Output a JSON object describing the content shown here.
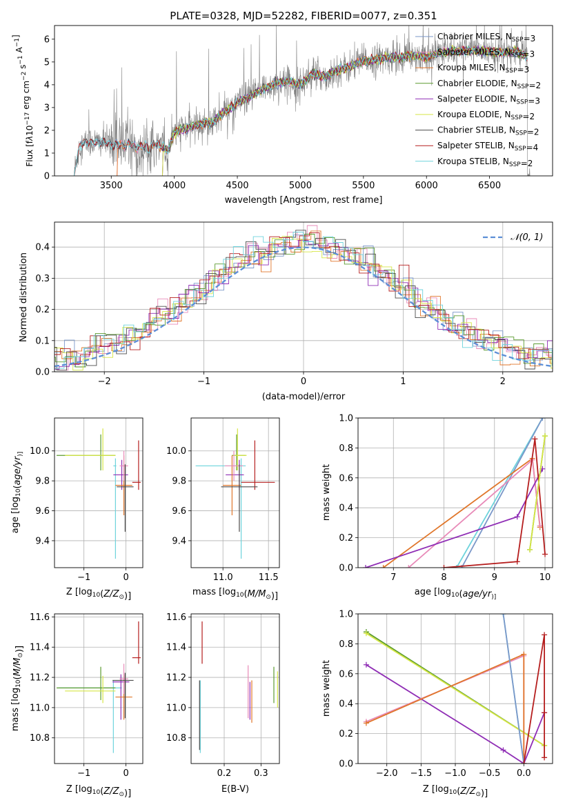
{
  "suptitle": "PLATE=0328, MJD=52282, FIBERID=0077, z=0.351",
  "colors": {
    "chabrier_miles": "#7a97c9",
    "salpeter_miles": "#e88ab8",
    "kroupa_miles": "#e0762a",
    "chabrier_elodie": "#5a9a2e",
    "salpeter_elodie": "#8f2db5",
    "kroupa_elodie": "#d6e645",
    "chabrier_stelib": "#4a4a4a",
    "salpeter_stelib": "#b51d1d",
    "kroupa_stelib": "#6dd3dc",
    "data": "#7f7f7f",
    "normal": "#5b8ed6"
  },
  "chart_data": [
    {
      "id": "spectrum",
      "type": "line",
      "xlabel": "wavelength [Angstrom, rest frame]",
      "ylabel_parts": [
        "Flux [f",
        "λ",
        "10",
        "−17",
        " erg cm",
        "−2",
        " s",
        "−1",
        " A",
        "−1",
        "]"
      ],
      "xlim": [
        3050,
        7000
      ],
      "ylim": [
        0,
        6.6
      ],
      "xticks": [
        3500,
        4000,
        4500,
        5000,
        5500,
        6000,
        6500
      ],
      "yticks": [
        0,
        1,
        2,
        3,
        4,
        5,
        6
      ],
      "model_continuum": {
        "x": [
          3200,
          3250,
          3300,
          3350,
          3400,
          3450,
          3500,
          3550,
          3600,
          3650,
          3700,
          3750,
          3800,
          3850,
          3900,
          3950,
          4000,
          4050,
          4100,
          4150,
          4200,
          4250,
          4300,
          4350,
          4400,
          4450,
          4500,
          4600,
          4700,
          4800,
          4900,
          5000,
          5100,
          5200,
          5300,
          5400,
          5500,
          5600,
          5700,
          5800,
          5900,
          6000,
          6100,
          6200,
          6300,
          6400,
          6500,
          6600,
          6700,
          6800
        ],
        "y": [
          0.0,
          1.35,
          1.45,
          1.5,
          1.45,
          1.5,
          1.35,
          1.4,
          1.3,
          1.45,
          1.2,
          1.35,
          1.2,
          1.4,
          1.3,
          1.1,
          1.9,
          2.05,
          2.1,
          2.2,
          2.25,
          2.35,
          2.3,
          2.6,
          2.8,
          3.0,
          3.2,
          3.5,
          3.8,
          4.05,
          4.15,
          4.0,
          4.5,
          4.35,
          4.65,
          4.8,
          5.05,
          5.1,
          5.2,
          5.2,
          5.3,
          5.2,
          5.4,
          5.45,
          5.5,
          5.5,
          5.45,
          5.4,
          5.5,
          5.2
        ]
      },
      "data_trace": {
        "wavelength_range": [
          3210,
          6820
        ],
        "note_visible": "noisy observed spectrum"
      },
      "legend": [
        {
          "label_main": "Chabrier MILES, N",
          "sub": "SSP",
          "label_tail": "=3",
          "color_key": "chabrier_miles"
        },
        {
          "label_main": "Salpeter MILES, N",
          "sub": "SSP",
          "label_tail": "=3",
          "color_key": "salpeter_miles"
        },
        {
          "label_main": "Kroupa MILES, N",
          "sub": "SSP",
          "label_tail": "=3",
          "color_key": "kroupa_miles"
        },
        {
          "label_main": "Chabrier ELODIE, N",
          "sub": "SSP",
          "label_tail": "=2",
          "color_key": "chabrier_elodie"
        },
        {
          "label_main": "Salpeter ELODIE, N",
          "sub": "SSP",
          "label_tail": "=3",
          "color_key": "salpeter_elodie"
        },
        {
          "label_main": "Kroupa ELODIE, N",
          "sub": "SSP",
          "label_tail": "=2",
          "color_key": "kroupa_elodie"
        },
        {
          "label_main": "Chabrier STELIB, N",
          "sub": "SSP",
          "label_tail": "=2",
          "color_key": "chabrier_stelib"
        },
        {
          "label_main": "Salpeter STELIB, N",
          "sub": "SSP",
          "label_tail": "=4",
          "color_key": "salpeter_stelib"
        },
        {
          "label_main": "Kroupa STELIB, N",
          "sub": "SSP",
          "label_tail": "=2",
          "color_key": "kroupa_stelib"
        }
      ]
    },
    {
      "id": "residuals",
      "type": "line",
      "xlabel": "(data-model)/error",
      "ylabel": "Normed distribution",
      "xlim": [
        -2.5,
        2.5
      ],
      "ylim": [
        0,
        0.48
      ],
      "xticks": [
        -2,
        -1,
        0,
        1,
        2
      ],
      "yticks": [
        0.0,
        0.1,
        0.2,
        0.3,
        0.4
      ],
      "legend": {
        "label": "𝒩(0, 1)",
        "placement": "top-right"
      },
      "grid": true
    },
    {
      "id": "age_vs_Z",
      "type": "scatter",
      "xlabel_parts": [
        "Z [log",
        "10",
        "(",
        "Z/Z",
        "⊙",
        ")]"
      ],
      "ylabel_parts": [
        "age  [log",
        "10",
        "(",
        "age/yr",
        ")]"
      ],
      "xlim": [
        -1.7,
        0.4
      ],
      "ylim": [
        9.22,
        10.22
      ],
      "xticks": [
        -1,
        0
      ],
      "yticks": [
        9.4,
        9.6,
        9.8,
        10.0
      ],
      "points": [
        {
          "x": -0.25,
          "y": 9.9,
          "xerr": [
            0.05,
            0.02
          ],
          "yerr": [
            0.62,
            0.05
          ],
          "c": "kroupa_stelib"
        },
        {
          "x": -0.6,
          "y": 9.97,
          "xerr": [
            1.05,
            0.35
          ],
          "yerr": [
            0.1,
            0.14
          ],
          "c": "chabrier_elodie"
        },
        {
          "x": -0.55,
          "y": 9.97,
          "xerr": [
            0.9,
            0.3
          ],
          "yerr": [
            0.1,
            0.18
          ],
          "c": "kroupa_elodie"
        },
        {
          "x": -0.1,
          "y": 9.84,
          "xerr": [
            0.2,
            0.15
          ],
          "yerr": [
            0.1,
            0.1
          ],
          "c": "salpeter_elodie"
        },
        {
          "x": -0.05,
          "y": 9.77,
          "xerr": [
            0.2,
            0.2
          ],
          "yerr": [
            0.2,
            0.2
          ],
          "c": "kroupa_miles"
        },
        {
          "x": -0.05,
          "y": 9.9,
          "xerr": [
            0.1,
            0.1
          ],
          "yerr": [
            0.1,
            0.1
          ],
          "c": "salpeter_miles"
        },
        {
          "x": 0.3,
          "y": 9.79,
          "xerr": [
            0.15,
            0.05
          ],
          "yerr": [
            0.05,
            0.28
          ],
          "c": "salpeter_stelib"
        },
        {
          "x": -0.02,
          "y": 9.76,
          "xerr": [
            0.2,
            0.2
          ],
          "yerr": [
            0.3,
            0.15
          ],
          "c": "chabrier_stelib"
        }
      ]
    },
    {
      "id": "age_vs_mass",
      "type": "scatter",
      "xlabel_parts": [
        "mass [log",
        "10",
        "(",
        "M/M",
        "⊙",
        ")]"
      ],
      "ylabel": "",
      "xlim": [
        10.65,
        11.62
      ],
      "ylim": [
        9.22,
        10.22
      ],
      "xticks": [
        11.0,
        11.5
      ],
      "yticks": [
        9.4,
        9.6,
        9.8,
        10.0
      ],
      "points": [
        {
          "x": 11.2,
          "y": 9.9,
          "xerr": [
            0.5,
            0.05
          ],
          "yerr": [
            0.62,
            0.05
          ],
          "c": "kroupa_stelib"
        },
        {
          "x": 11.15,
          "y": 9.97,
          "xerr": [
            0.05,
            0.1
          ],
          "yerr": [
            0.1,
            0.14
          ],
          "c": "chabrier_elodie"
        },
        {
          "x": 11.16,
          "y": 9.97,
          "xerr": [
            0.05,
            0.1
          ],
          "yerr": [
            0.1,
            0.18
          ],
          "c": "kroupa_elodie"
        },
        {
          "x": 11.18,
          "y": 9.84,
          "xerr": [
            0.15,
            0.05
          ],
          "yerr": [
            0.1,
            0.1
          ],
          "c": "salpeter_elodie"
        },
        {
          "x": 11.1,
          "y": 9.77,
          "xerr": [
            0.1,
            0.1
          ],
          "yerr": [
            0.2,
            0.2
          ],
          "c": "kroupa_miles"
        },
        {
          "x": 11.12,
          "y": 9.9,
          "xerr": [
            0.1,
            0.1
          ],
          "yerr": [
            0.1,
            0.1
          ],
          "c": "salpeter_miles"
        },
        {
          "x": 11.35,
          "y": 9.79,
          "xerr": [
            0.15,
            0.22
          ],
          "yerr": [
            0.05,
            0.28
          ],
          "c": "salpeter_stelib"
        },
        {
          "x": 11.18,
          "y": 9.76,
          "xerr": [
            0.2,
            0.2
          ],
          "yerr": [
            0.3,
            0.15
          ],
          "c": "chabrier_stelib"
        }
      ]
    },
    {
      "id": "mass_vs_Z",
      "type": "scatter",
      "xlabel_parts": [
        "Z [log",
        "10",
        "(",
        "Z/Z",
        "⊙",
        ")]"
      ],
      "ylabel_parts": [
        "mass [log",
        "10",
        "(",
        "M/M",
        "⊙",
        ")]"
      ],
      "xlim": [
        -1.7,
        0.4
      ],
      "ylim": [
        10.63,
        11.62
      ],
      "xticks": [
        -1,
        0
      ],
      "yticks": [
        10.8,
        11.0,
        11.2,
        11.4,
        11.6
      ],
      "points": [
        {
          "x": -0.3,
          "y": 11.13,
          "xerr": [
            1.3,
            0.2
          ],
          "yerr": [
            0.43,
            0.05
          ],
          "c": "kroupa_stelib"
        },
        {
          "x": -0.6,
          "y": 11.13,
          "xerr": [
            1.05,
            0.35
          ],
          "yerr": [
            0.08,
            0.14
          ],
          "c": "chabrier_elodie"
        },
        {
          "x": -0.55,
          "y": 11.11,
          "xerr": [
            0.9,
            0.3
          ],
          "yerr": [
            0.08,
            0.1
          ],
          "c": "kroupa_elodie"
        },
        {
          "x": -0.12,
          "y": 11.17,
          "xerr": [
            0.2,
            0.2
          ],
          "yerr": [
            0.25,
            0.05
          ],
          "c": "salpeter_elodie"
        },
        {
          "x": -0.05,
          "y": 11.07,
          "xerr": [
            0.2,
            0.2
          ],
          "yerr": [
            0.15,
            0.15
          ],
          "c": "kroupa_miles"
        },
        {
          "x": -0.05,
          "y": 11.19,
          "xerr": [
            0.1,
            0.1
          ],
          "yerr": [
            0.1,
            0.1
          ],
          "c": "salpeter_miles"
        },
        {
          "x": 0.3,
          "y": 11.33,
          "xerr": [
            0.15,
            0.05
          ],
          "yerr": [
            0.04,
            0.24
          ],
          "c": "salpeter_stelib"
        },
        {
          "x": -0.02,
          "y": 11.18,
          "xerr": [
            0.3,
            0.2
          ],
          "yerr": [
            0.25,
            0.05
          ],
          "c": "chabrier_stelib"
        }
      ]
    },
    {
      "id": "mass_vs_EBV",
      "type": "scatter",
      "xlabel": "E(B-V)",
      "ylabel": "",
      "xlim": [
        0.11,
        0.35
      ],
      "ylim": [
        10.63,
        11.62
      ],
      "xticks": [
        0.2,
        0.3
      ],
      "yticks": [
        10.8,
        11.0,
        11.2,
        11.4,
        11.6
      ],
      "points": [
        {
          "x": 0.135,
          "y": 11.0,
          "xerr": [
            0,
            0
          ],
          "yerr": [
            0.3,
            0.18
          ],
          "c": "kroupa_stelib"
        },
        {
          "x": 0.133,
          "y": 11.0,
          "xerr": [
            0,
            0
          ],
          "yerr": [
            0.28,
            0.18
          ],
          "c": "chabrier_stelib"
        },
        {
          "x": 0.14,
          "y": 11.43,
          "xerr": [
            0,
            0
          ],
          "yerr": [
            0.14,
            0.14
          ],
          "c": "salpeter_stelib"
        },
        {
          "x": 0.265,
          "y": 11.1,
          "xerr": [
            0,
            0
          ],
          "yerr": [
            0.17,
            0.18
          ],
          "c": "salpeter_miles"
        },
        {
          "x": 0.27,
          "y": 11.07,
          "xerr": [
            0,
            0
          ],
          "yerr": [
            0.15,
            0.1
          ],
          "c": "salpeter_elodie"
        },
        {
          "x": 0.275,
          "y": 11.05,
          "xerr": [
            0,
            0
          ],
          "yerr": [
            0.15,
            0.13
          ],
          "c": "kroupa_miles"
        },
        {
          "x": 0.335,
          "y": 11.13,
          "xerr": [
            0,
            0
          ],
          "yerr": [
            0.1,
            0.14
          ],
          "c": "chabrier_elodie"
        },
        {
          "x": 0.345,
          "y": 11.12,
          "xerr": [
            0,
            0
          ],
          "yerr": [
            0.12,
            0.12
          ],
          "c": "kroupa_elodie"
        }
      ]
    },
    {
      "id": "weight_vs_age",
      "type": "line",
      "xlabel_parts": [
        "age  [log",
        "10",
        "(",
        "age/yr",
        ")]"
      ],
      "ylabel": "mass weight",
      "xlim": [
        6.3,
        10.15
      ],
      "ylim": [
        0,
        1
      ],
      "xticks": [
        7,
        8,
        9,
        10
      ],
      "yticks": [
        0.0,
        0.2,
        0.4,
        0.6,
        0.8,
        1.0
      ],
      "series": [
        {
          "c": "kroupa_stelib",
          "x": [
            8.25,
            9.95
          ],
          "y": [
            0.0,
            1.0
          ]
        },
        {
          "c": "chabrier_miles",
          "x": [
            8.35,
            9.95
          ],
          "y": [
            0.0,
            1.0
          ]
        },
        {
          "c": "kroupa_miles",
          "x": [
            6.8,
            9.75,
            9.9
          ],
          "y": [
            0.0,
            0.73,
            0.27
          ]
        },
        {
          "c": "salpeter_miles",
          "x": [
            7.3,
            9.75,
            9.9
          ],
          "y": [
            0.0,
            0.72,
            0.28
          ]
        },
        {
          "c": "salpeter_elodie",
          "x": [
            6.45,
            9.45,
            9.95
          ],
          "y": [
            0.0,
            0.34,
            0.66
          ]
        },
        {
          "c": "salpeter_stelib",
          "x": [
            8.0,
            9.45,
            9.8,
            10.0
          ],
          "y": [
            0.0,
            0.04,
            0.86,
            0.09
          ]
        },
        {
          "c": "chabrier_elodie",
          "x": [
            9.7,
            10.0
          ],
          "y": [
            0.12,
            0.88
          ]
        },
        {
          "c": "kroupa_elodie",
          "x": [
            9.7,
            10.0
          ],
          "y": [
            0.12,
            0.88
          ]
        }
      ]
    },
    {
      "id": "weight_vs_Z",
      "type": "line",
      "xlabel_parts": [
        "Z [log",
        "10",
        "(",
        "Z/Z",
        "⊙",
        ")]"
      ],
      "ylabel": "mass weight",
      "xlim": [
        -2.42,
        0.42
      ],
      "ylim": [
        0,
        1
      ],
      "xticks": [
        -2.0,
        -1.5,
        -1.0,
        -0.5,
        0.0
      ],
      "yticks": [
        0.0,
        0.2,
        0.4,
        0.6,
        0.8,
        1.0
      ],
      "series": [
        {
          "c": "chabrier_elodie",
          "x": [
            -2.3,
            0.3
          ],
          "y": [
            0.88,
            0.12
          ]
        },
        {
          "c": "kroupa_elodie",
          "x": [
            -2.3,
            0.3
          ],
          "y": [
            0.87,
            0.12
          ]
        },
        {
          "c": "salpeter_elodie",
          "x": [
            -2.3,
            -0.3,
            0.0,
            0.3
          ],
          "y": [
            0.66,
            0.09,
            0.0,
            0.34
          ]
        },
        {
          "c": "salpeter_miles",
          "x": [
            -2.3,
            0.0,
            0.0
          ],
          "y": [
            0.28,
            0.72,
            0.0
          ]
        },
        {
          "c": "kroupa_miles",
          "x": [
            -2.3,
            0.0,
            0.0
          ],
          "y": [
            0.27,
            0.73,
            0.0
          ]
        },
        {
          "c": "kroupa_stelib",
          "x": [
            -0.3,
            0.0
          ],
          "y": [
            1.0,
            0.0
          ]
        },
        {
          "c": "chabrier_miles",
          "x": [
            -0.3,
            0.0
          ],
          "y": [
            1.0,
            0.0
          ]
        },
        {
          "c": "salpeter_stelib",
          "x": [
            0.0,
            0.3,
            0.3,
            0.3
          ],
          "y": [
            0.0,
            0.86,
            0.04,
            0.34
          ]
        }
      ]
    }
  ]
}
